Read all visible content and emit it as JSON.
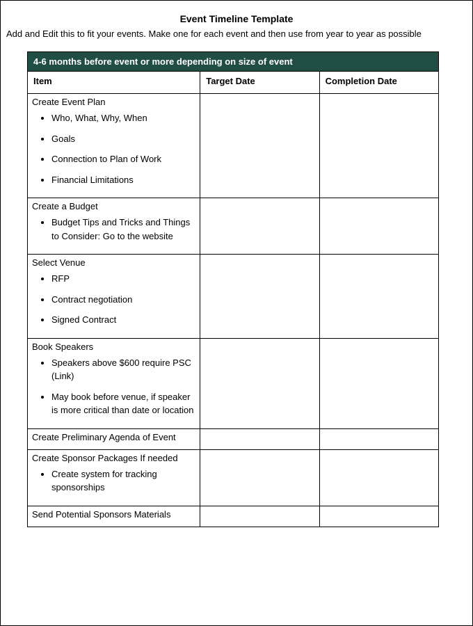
{
  "title": "Event Timeline Template",
  "subtitle": "Add and Edit this to fit your events. Make one for each event and then use from year to year as possible",
  "colors": {
    "section_header_bg": "#204d44",
    "section_header_text": "#ffffff",
    "border": "#000000",
    "page_bg": "#ffffff",
    "text": "#000000"
  },
  "table": {
    "section_header": "4-6 months before event  or more depending on size of event",
    "columns": [
      "Item",
      "Target Date",
      "Completion Date"
    ],
    "column_widths_pct": [
      42,
      29,
      29
    ],
    "rows": [
      {
        "item_label": "Create Event Plan",
        "bullets": [
          "Who, What, Why, When",
          "Goals",
          "Connection to Plan of Work",
          "Financial Limitations"
        ],
        "target_date": "",
        "completion_date": ""
      },
      {
        "item_label": "Create a Budget",
        "bullets": [
          "Budget Tips and Tricks and Things to Consider: Go to the website"
        ],
        "target_date": "",
        "completion_date": ""
      },
      {
        "item_label": "Select Venue",
        "bullets": [
          "RFP",
          "Contract negotiation",
          "Signed Contract"
        ],
        "target_date": "",
        "completion_date": ""
      },
      {
        "item_label": "Book Speakers",
        "bullets": [
          "Speakers above $600 require PSC (Link)",
          "May book before venue, if speaker is more critical than date or location"
        ],
        "target_date": "",
        "completion_date": ""
      },
      {
        "item_label": "Create Preliminary Agenda  of Event",
        "bullets": [],
        "target_date": "",
        "completion_date": ""
      },
      {
        "item_label": "Create Sponsor Packages If needed",
        "bullets": [
          "Create system for tracking sponsorships"
        ],
        "target_date": "",
        "completion_date": ""
      },
      {
        "item_label": "Send Potential Sponsors Materials",
        "bullets": [],
        "target_date": "",
        "completion_date": ""
      }
    ]
  }
}
